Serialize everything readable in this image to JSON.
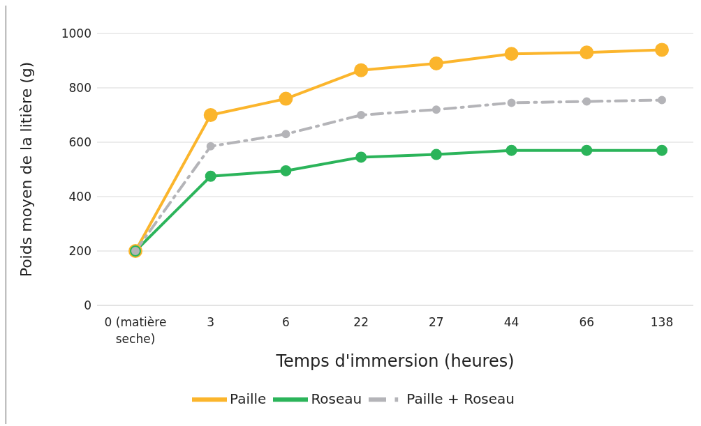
{
  "chart_data": {
    "type": "line",
    "xlabel": "Temps d'immersion (heures)",
    "ylabel": "Poids moyen de la litière (g)",
    "categories": [
      "0 (matière seche)",
      "3",
      "6",
      "22",
      "27",
      "44",
      "66",
      "138"
    ],
    "series": [
      {
        "name": "Paille",
        "color": "#fbb52c",
        "values": [
          200,
          700,
          760,
          865,
          890,
          925,
          930,
          940
        ]
      },
      {
        "name": "Roseau",
        "color": "#2bb45a",
        "values": [
          200,
          475,
          495,
          545,
          555,
          570,
          570,
          570
        ]
      },
      {
        "name": "Paille + Roseau",
        "color": "#b4b4b8",
        "line_style": "dashed",
        "values": [
          200,
          585,
          630,
          700,
          720,
          745,
          750,
          755
        ]
      }
    ],
    "ylim": [
      0,
      1000
    ],
    "yticks": [
      0,
      200,
      400,
      600,
      800,
      1000
    ],
    "grid": "y",
    "legend": "bottom",
    "marker": "circle",
    "line_style": "solid"
  }
}
